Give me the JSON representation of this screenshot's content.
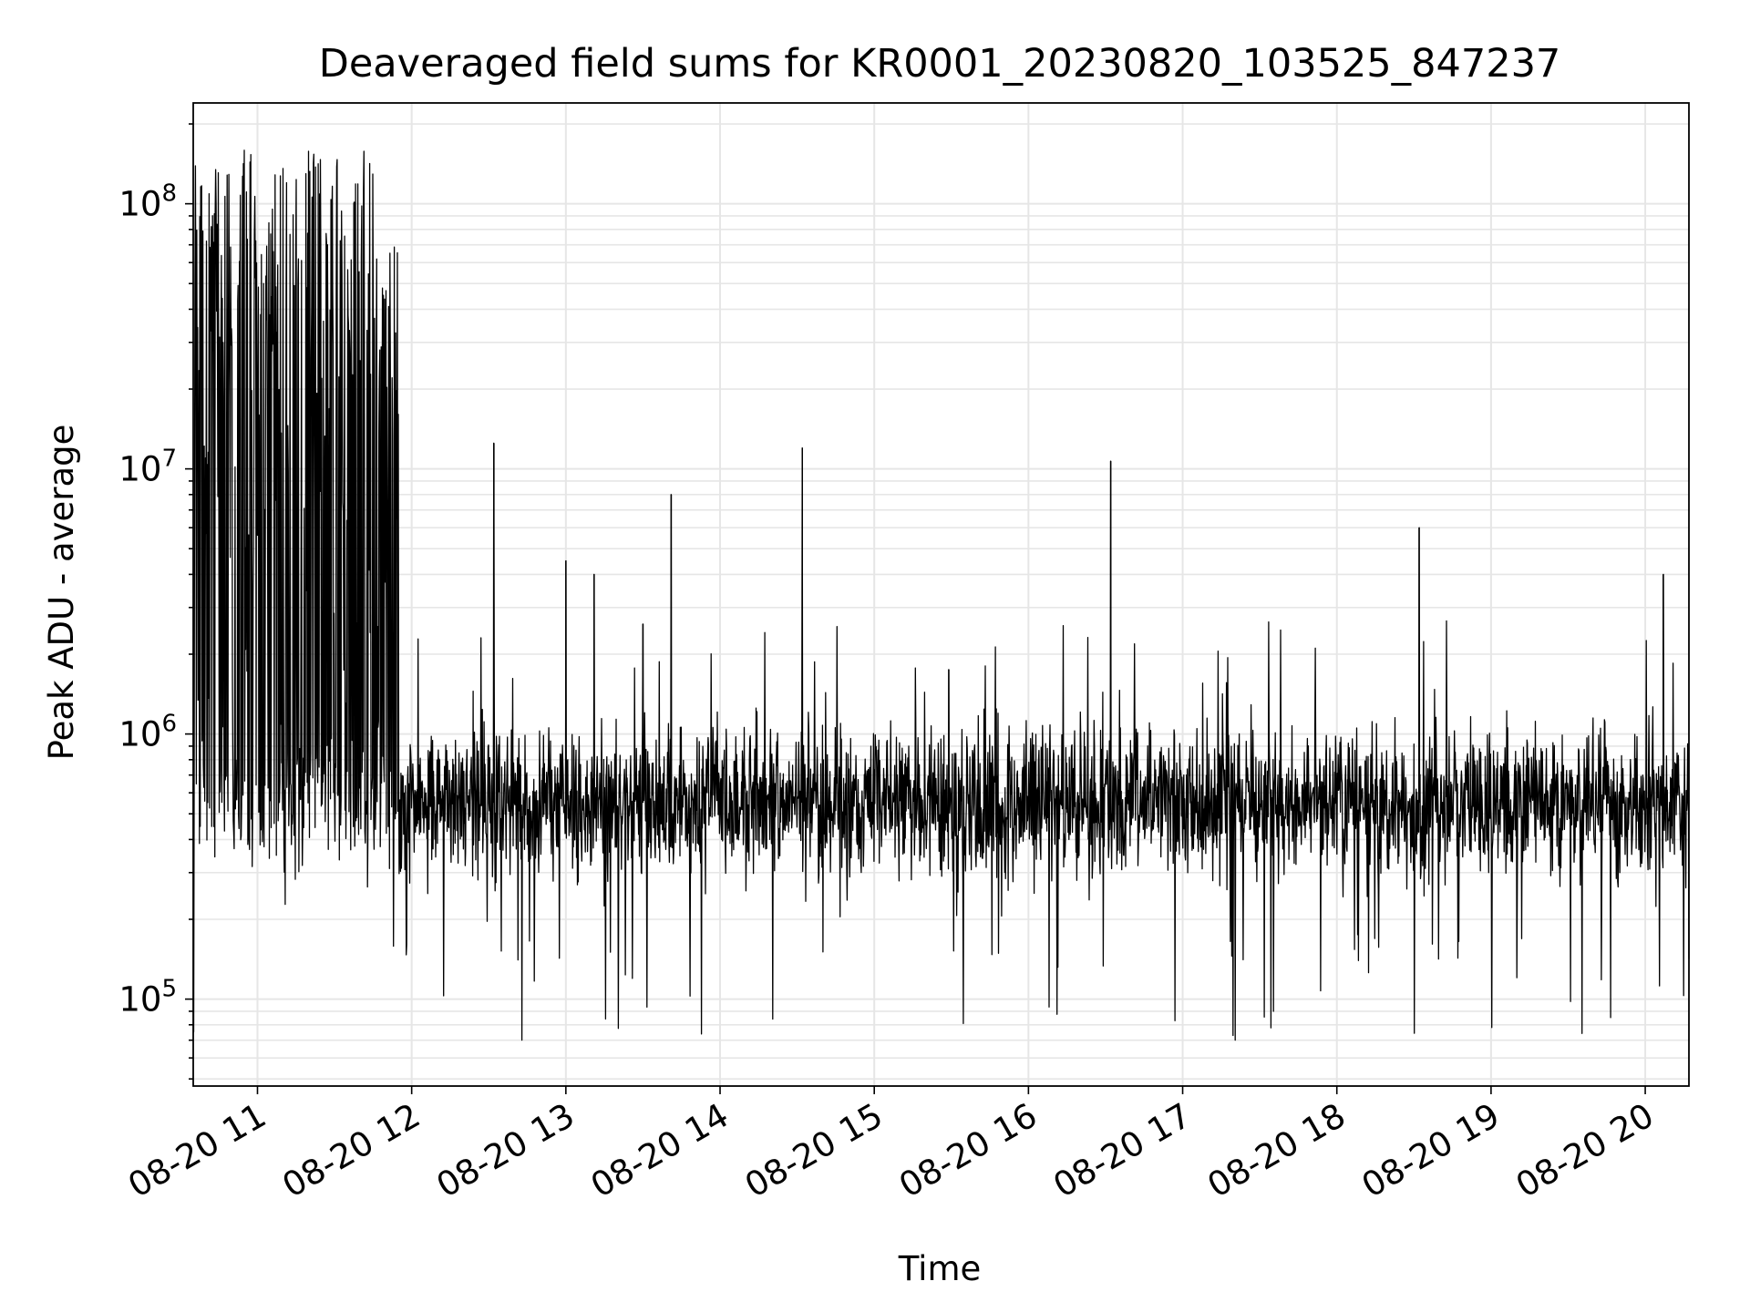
{
  "chart_data": {
    "type": "line",
    "title": "Deaveraged field sums for KR0001_20230820_103525_847237",
    "xlabel": "Time",
    "ylabel": "Peak ADU - average",
    "yscale": "log",
    "xlim": [
      "2023-08-20 10:35",
      "2023-08-20 20:17"
    ],
    "ylim": [
      47000,
      240000000
    ],
    "x_tick_labels": [
      "08-20 11",
      "08-20 12",
      "08-20 13",
      "08-20 14",
      "08-20 15",
      "08-20 16",
      "08-20 17",
      "08-20 18",
      "08-20 19",
      "08-20 20"
    ],
    "y_tick_labels": [
      {
        "base": "10",
        "exp": "5"
      },
      {
        "base": "10",
        "exp": "6"
      },
      {
        "base": "10",
        "exp": "7"
      },
      {
        "base": "10",
        "exp": "8"
      }
    ],
    "grid": true,
    "line_color": "#000000",
    "grid_color": "#e6e6e6",
    "spikes": [
      {
        "t": "2023-08-20 12:32",
        "y": 12500000
      },
      {
        "t": "2023-08-20 13:00",
        "y": 4500000
      },
      {
        "t": "2023-08-20 13:11",
        "y": 4000000
      },
      {
        "t": "2023-08-20 13:30",
        "y": 2600000
      },
      {
        "t": "2023-08-20 13:41",
        "y": 8000000
      },
      {
        "t": "2023-08-20 14:32",
        "y": 12000000
      },
      {
        "t": "2023-08-20 15:29",
        "y": 1750000
      },
      {
        "t": "2023-08-20 16:32",
        "y": 10700000
      },
      {
        "t": "2023-08-20 18:32",
        "y": 6000000
      },
      {
        "t": "2023-08-20 20:07",
        "y": 4000000
      }
    ],
    "bursts": [
      {
        "start": "2023-08-20 10:35",
        "end": "2023-08-20 11:45",
        "peak": 160000000,
        "trough": 300000
      },
      {
        "start": "2023-08-20 11:45",
        "end": "2023-08-20 11:55",
        "peak": 70000000,
        "trough": 350000
      }
    ],
    "baseline": {
      "median": 550000,
      "spread_decades": 0.25,
      "min": 70000,
      "max": 1400000
    }
  }
}
